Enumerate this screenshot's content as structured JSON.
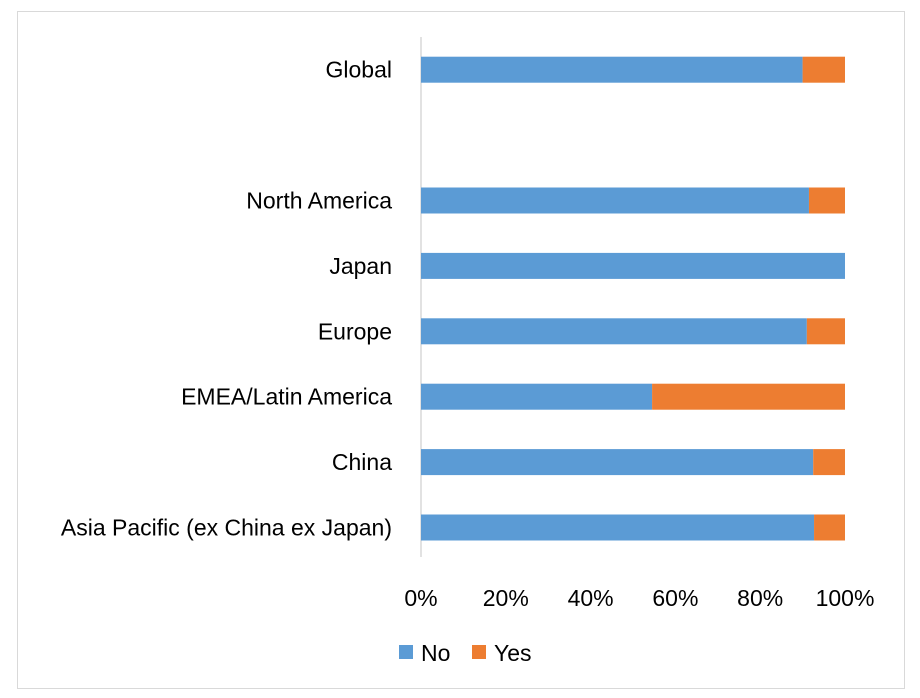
{
  "chart_data": {
    "type": "bar",
    "orientation": "horizontal",
    "stacked": "percent",
    "categories": [
      "Global",
      "",
      "North America",
      "Japan",
      "Europe",
      "EMEA/Latin America",
      "China",
      "Asia Pacific (ex China ex Japan)"
    ],
    "series": [
      {
        "name": "No",
        "color": "#5b9bd5",
        "values": [
          90,
          null,
          91.5,
          100,
          91,
          54.5,
          92.5,
          92.7
        ]
      },
      {
        "name": "Yes",
        "color": "#ed7d31",
        "values": [
          10,
          null,
          8.5,
          0,
          9,
          45.5,
          7.5,
          7.3
        ]
      }
    ],
    "xaxis": {
      "ticks": [
        "0%",
        "20%",
        "40%",
        "60%",
        "80%",
        "100%"
      ],
      "range": [
        0,
        100
      ]
    },
    "legend": {
      "position": "bottom"
    },
    "grid": false,
    "title": "",
    "xlabel": "",
    "ylabel": ""
  }
}
